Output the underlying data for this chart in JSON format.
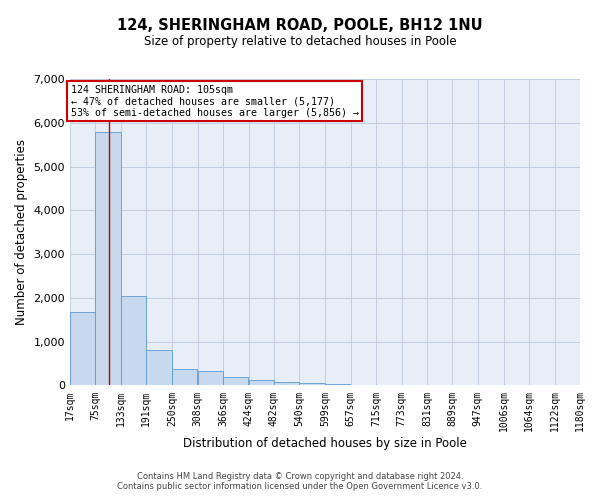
{
  "title": "124, SHERINGHAM ROAD, POOLE, BH12 1NU",
  "subtitle": "Size of property relative to detached houses in Poole",
  "xlabel": "Distribution of detached houses by size in Poole",
  "ylabel": "Number of detached properties",
  "bin_edges": [
    17,
    75,
    133,
    191,
    250,
    308,
    366,
    424,
    482,
    540,
    599,
    657,
    715,
    773,
    831,
    889,
    947,
    1006,
    1064,
    1122,
    1180
  ],
  "bar_heights": [
    1680,
    5800,
    2050,
    820,
    380,
    340,
    190,
    130,
    90,
    55,
    28,
    12,
    6,
    3,
    2,
    1,
    0,
    0,
    0,
    0
  ],
  "bar_color": "#c9d9ed",
  "bar_edgecolor": "#5b9bd5",
  "subject_size": 105,
  "annotation_text": "124 SHERINGHAM ROAD: 105sqm\n← 47% of detached houses are smaller (5,177)\n53% of semi-detached houses are larger (5,856) →",
  "vline_color": "#cc0000",
  "annotation_box_edgecolor": "#cc0000",
  "annotation_box_facecolor": "#ffffff",
  "ylim": [
    0,
    7000
  ],
  "yticks": [
    0,
    1000,
    2000,
    3000,
    4000,
    5000,
    6000,
    7000
  ],
  "footer_line1": "Contains HM Land Registry data © Crown copyright and database right 2024.",
  "footer_line2": "Contains public sector information licensed under the Open Government Licence v3.0.",
  "background_color": "#ffffff",
  "plot_bg_color": "#e8eef7",
  "grid_color": "#c0cfe0",
  "tick_label_fontsize": 7,
  "ytick_label_fontsize": 8,
  "axis_label_fontsize": 8.5,
  "title_fontsize": 10.5,
  "subtitle_fontsize": 8.5,
  "footer_fontsize": 6.0
}
